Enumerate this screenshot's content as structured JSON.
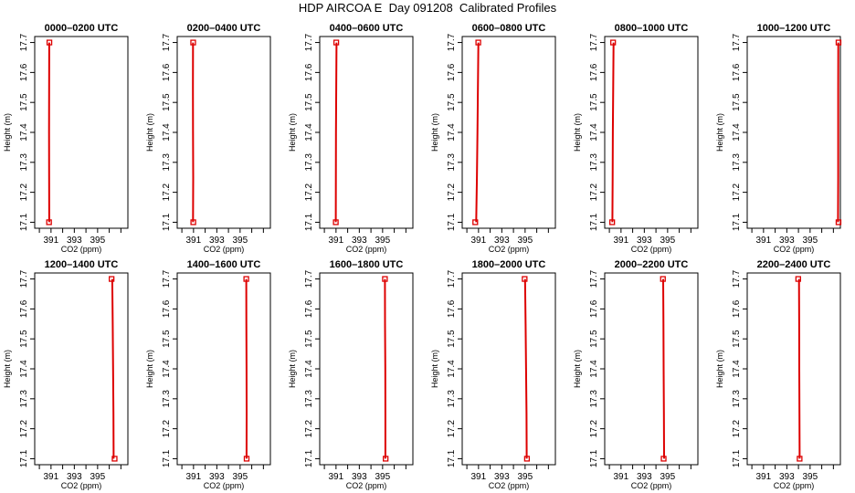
{
  "figure": {
    "title": "HDP AIRCOA E  Day 091208  Calibrated Profiles"
  },
  "chart_data": [
    {
      "type": "line",
      "title": "0000–0200 UTC",
      "xlabel": "CO2 (ppm)",
      "ylabel": "Height (m)",
      "xlim": [
        389.6,
        397.6
      ],
      "ylim": [
        17.08,
        17.72
      ],
      "xticks": [
        391,
        393,
        395
      ],
      "yticks": [
        17.1,
        17.2,
        17.3,
        17.4,
        17.5,
        17.6,
        17.7
      ],
      "series": [
        {
          "x": [
            390.85,
            390.84,
            390.83,
            390.84,
            390.85
          ],
          "y": [
            17.1,
            17.25,
            17.4,
            17.55,
            17.7
          ]
        }
      ],
      "markers": [
        {
          "x": 390.83,
          "y": 17.1
        },
        {
          "x": 390.86,
          "y": 17.7
        }
      ]
    },
    {
      "type": "line",
      "title": "0200–0400 UTC",
      "xlabel": "CO2 (ppm)",
      "ylabel": "Height (m)",
      "xlim": [
        389.6,
        397.6
      ],
      "ylim": [
        17.08,
        17.72
      ],
      "xticks": [
        391,
        393,
        395
      ],
      "yticks": [
        17.1,
        17.2,
        17.3,
        17.4,
        17.5,
        17.6,
        17.7
      ],
      "series": [
        {
          "x": [
            390.96,
            390.97,
            390.96,
            390.95,
            390.96
          ],
          "y": [
            17.1,
            17.25,
            17.4,
            17.55,
            17.7
          ]
        }
      ],
      "markers": [
        {
          "x": 390.98,
          "y": 17.1
        },
        {
          "x": 390.97,
          "y": 17.7
        }
      ]
    },
    {
      "type": "line",
      "title": "0400–0600 UTC",
      "xlabel": "CO2 (ppm)",
      "ylabel": "Height (m)",
      "xlim": [
        389.6,
        397.6
      ],
      "ylim": [
        17.08,
        17.72
      ],
      "xticks": [
        391,
        393,
        395
      ],
      "yticks": [
        17.1,
        17.2,
        17.3,
        17.4,
        17.5,
        17.6,
        17.7
      ],
      "series": [
        {
          "x": [
            390.98,
            390.99,
            391.0,
            391.02,
            391.04
          ],
          "y": [
            17.1,
            17.25,
            17.4,
            17.55,
            17.7
          ]
        }
      ],
      "markers": [
        {
          "x": 390.98,
          "y": 17.1
        },
        {
          "x": 391.02,
          "y": 17.7
        }
      ]
    },
    {
      "type": "line",
      "title": "0600–0800 UTC",
      "xlabel": "CO2 (ppm)",
      "ylabel": "Height (m)",
      "xlim": [
        389.6,
        397.6
      ],
      "ylim": [
        17.08,
        17.72
      ],
      "xticks": [
        391,
        393,
        395
      ],
      "yticks": [
        17.1,
        17.2,
        17.3,
        17.4,
        17.5,
        17.6,
        17.7
      ],
      "series": [
        {
          "x": [
            390.8,
            390.86,
            390.91,
            390.95,
            390.99
          ],
          "y": [
            17.1,
            17.25,
            17.4,
            17.55,
            17.7
          ]
        }
      ],
      "markers": [
        {
          "x": 390.72,
          "y": 17.1
        },
        {
          "x": 390.98,
          "y": 17.7
        }
      ]
    },
    {
      "type": "line",
      "title": "0800–1000 UTC",
      "xlabel": "CO2 (ppm)",
      "ylabel": "Height (m)",
      "xlim": [
        389.6,
        397.6
      ],
      "ylim": [
        17.08,
        17.72
      ],
      "xticks": [
        391,
        393,
        395
      ],
      "yticks": [
        17.1,
        17.2,
        17.3,
        17.4,
        17.5,
        17.6,
        17.7
      ],
      "series": [
        {
          "x": [
            390.26,
            390.28,
            390.3,
            390.33,
            390.36
          ],
          "y": [
            17.1,
            17.25,
            17.4,
            17.55,
            17.7
          ]
        }
      ],
      "markers": [
        {
          "x": 390.24,
          "y": 17.1
        },
        {
          "x": 390.32,
          "y": 17.7
        }
      ]
    },
    {
      "type": "line",
      "title": "1000–1200 UTC",
      "xlabel": "CO2 (ppm)",
      "ylabel": "Height (m)",
      "xlim": [
        389.6,
        397.6
      ],
      "ylim": [
        17.08,
        17.72
      ],
      "xticks": [
        391,
        393,
        395
      ],
      "yticks": [
        17.1,
        17.2,
        17.3,
        17.4,
        17.5,
        17.6,
        17.7
      ],
      "series": [
        {
          "x": [
            397.4,
            397.41,
            397.41,
            397.41,
            397.42
          ],
          "y": [
            17.1,
            17.25,
            17.4,
            17.55,
            17.7
          ]
        }
      ],
      "markers": [
        {
          "x": 397.44,
          "y": 17.1
        },
        {
          "x": 397.44,
          "y": 17.7
        }
      ]
    },
    {
      "type": "line",
      "title": "1200–1400 UTC",
      "xlabel": "CO2 (ppm)",
      "ylabel": "Height (m)",
      "xlim": [
        389.6,
        397.6
      ],
      "ylim": [
        17.08,
        17.72
      ],
      "xticks": [
        391,
        393,
        395
      ],
      "yticks": [
        17.1,
        17.2,
        17.3,
        17.4,
        17.5,
        17.6,
        17.7
      ],
      "series": [
        {
          "x": [
            396.38,
            396.36,
            396.33,
            396.3,
            396.26
          ],
          "y": [
            17.1,
            17.25,
            17.4,
            17.55,
            17.7
          ]
        }
      ],
      "markers": [
        {
          "x": 396.46,
          "y": 17.1
        },
        {
          "x": 396.2,
          "y": 17.7
        }
      ]
    },
    {
      "type": "line",
      "title": "1400–1600 UTC",
      "xlabel": "CO2 (ppm)",
      "ylabel": "Height (m)",
      "xlim": [
        389.6,
        397.6
      ],
      "ylim": [
        17.08,
        17.72
      ],
      "xticks": [
        391,
        393,
        395
      ],
      "yticks": [
        17.1,
        17.2,
        17.3,
        17.4,
        17.5,
        17.6,
        17.7
      ],
      "series": [
        {
          "x": [
            395.55,
            395.56,
            395.55,
            395.54,
            395.53
          ],
          "y": [
            17.1,
            17.25,
            17.4,
            17.55,
            17.7
          ]
        }
      ],
      "markers": [
        {
          "x": 395.56,
          "y": 17.1
        },
        {
          "x": 395.53,
          "y": 17.7
        }
      ]
    },
    {
      "type": "line",
      "title": "1600–1800 UTC",
      "xlabel": "CO2 (ppm)",
      "ylabel": "Height (m)",
      "xlim": [
        389.6,
        397.6
      ],
      "ylim": [
        17.08,
        17.72
      ],
      "xticks": [
        391,
        393,
        395
      ],
      "yticks": [
        17.1,
        17.2,
        17.3,
        17.4,
        17.5,
        17.6,
        17.7
      ],
      "series": [
        {
          "x": [
            395.24,
            395.24,
            395.23,
            395.21,
            395.2
          ],
          "y": [
            17.1,
            17.25,
            17.4,
            17.55,
            17.7
          ]
        }
      ],
      "markers": [
        {
          "x": 395.26,
          "y": 17.1
        },
        {
          "x": 395.2,
          "y": 17.7
        }
      ]
    },
    {
      "type": "line",
      "title": "1800–2000 UTC",
      "xlabel": "CO2 (ppm)",
      "ylabel": "Height (m)",
      "xlim": [
        389.6,
        397.6
      ],
      "ylim": [
        17.08,
        17.72
      ],
      "xticks": [
        391,
        393,
        395
      ],
      "yticks": [
        17.1,
        17.2,
        17.3,
        17.4,
        17.5,
        17.6,
        17.7
      ],
      "series": [
        {
          "x": [
            395.14,
            395.12,
            395.08,
            395.04,
            395.0
          ],
          "y": [
            17.1,
            17.25,
            17.4,
            17.55,
            17.7
          ]
        }
      ],
      "markers": [
        {
          "x": 395.16,
          "y": 17.1
        },
        {
          "x": 394.96,
          "y": 17.7
        }
      ]
    },
    {
      "type": "line",
      "title": "2000–2200 UTC",
      "xlabel": "CO2 (ppm)",
      "ylabel": "Height (m)",
      "xlim": [
        389.6,
        397.6
      ],
      "ylim": [
        17.08,
        17.72
      ],
      "xticks": [
        391,
        393,
        395
      ],
      "yticks": [
        17.1,
        17.2,
        17.3,
        17.4,
        17.5,
        17.6,
        17.7
      ],
      "series": [
        {
          "x": [
            394.7,
            394.68,
            394.66,
            394.64,
            394.62
          ],
          "y": [
            17.1,
            17.25,
            17.4,
            17.55,
            17.7
          ]
        }
      ],
      "markers": [
        {
          "x": 394.66,
          "y": 17.1
        },
        {
          "x": 394.6,
          "y": 17.7
        }
      ]
    },
    {
      "type": "line",
      "title": "2200–2400 UTC",
      "xlabel": "CO2 (ppm)",
      "ylabel": "Height (m)",
      "xlim": [
        389.6,
        397.6
      ],
      "ylim": [
        17.08,
        17.72
      ],
      "xticks": [
        391,
        393,
        395
      ],
      "yticks": [
        17.1,
        17.2,
        17.3,
        17.4,
        17.5,
        17.6,
        17.7
      ],
      "series": [
        {
          "x": [
            394.1,
            394.09,
            394.07,
            394.06,
            394.05
          ],
          "y": [
            17.1,
            17.25,
            17.4,
            17.55,
            17.7
          ]
        }
      ],
      "markers": [
        {
          "x": 394.1,
          "y": 17.1
        },
        {
          "x": 393.98,
          "y": 17.7
        }
      ]
    }
  ],
  "colors": {
    "profile_line": "#dd0000",
    "marker": "#dd0000",
    "axis": "#000000"
  }
}
